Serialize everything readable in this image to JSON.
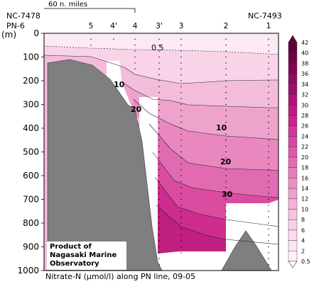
{
  "chart_data": {
    "type": "contour",
    "title": "Nitrate-N (μmol/l) along PN line, 09-05",
    "ylabel": "(m)",
    "ylim": [
      0,
      1000
    ],
    "y_ticks": [
      0,
      100,
      200,
      300,
      400,
      500,
      600,
      700,
      800,
      900,
      1000
    ],
    "stations": [
      "PN-6",
      "5",
      "4'",
      "4",
      "3'",
      "3",
      "2",
      "1"
    ],
    "end_labels": {
      "left": "NC-7478",
      "right": "NC-7493"
    },
    "scale_bar_label": "60 n. miles",
    "contour_labels": [
      "0.5",
      "10",
      "20",
      "10",
      "20",
      "30"
    ],
    "colorbar": {
      "levels": [
        0.5,
        2,
        4,
        6,
        8,
        10,
        12,
        14,
        16,
        18,
        20,
        22,
        24,
        26,
        28,
        30,
        32,
        34,
        36,
        38,
        40,
        42
      ]
    },
    "credit": [
      "Product of",
      "Nagasaki Marine",
      "Observatory"
    ],
    "caption": "Nitrate-N (μmol/l) along PN line, 09-05"
  }
}
